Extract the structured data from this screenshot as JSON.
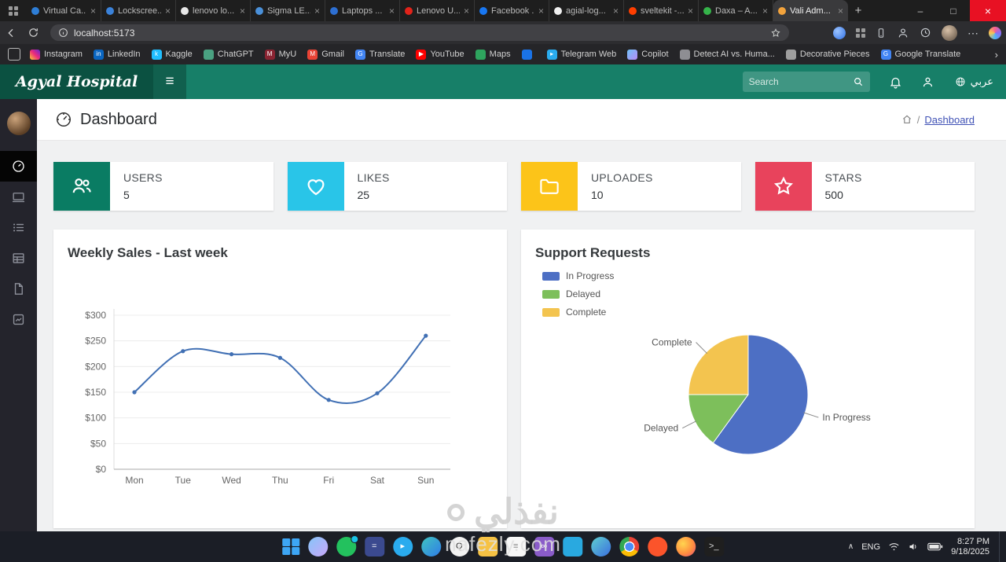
{
  "window": {
    "minimize": "–",
    "maximize": "□",
    "close": "×"
  },
  "icons": {
    "tab_close": "×",
    "new_tab": "+",
    "overflow_chevron": "›",
    "more_menu": "⋯",
    "hamburger": "≡",
    "tray_chevron": "∧",
    "breadcrumb_separator": "/"
  },
  "browser": {
    "address": "localhost:5173",
    "tabs": [
      {
        "label": "Virtual Ca...",
        "color": "#2e7ed6"
      },
      {
        "label": "Lockscree...",
        "color": "#3b82d9"
      },
      {
        "label": "lenovo lo...",
        "color": "#e8e8e8"
      },
      {
        "label": "Sigma LE...",
        "color": "#4a90d9"
      },
      {
        "label": "Laptops ...",
        "color": "#2d6fd2"
      },
      {
        "label": "Lenovo U...",
        "color": "#e2231a"
      },
      {
        "label": "Facebook ...",
        "color": "#1877f2"
      },
      {
        "label": "agial-log...",
        "color": "#f0f0f0"
      },
      {
        "label": "sveltekit -...",
        "color": "#ff3e00"
      },
      {
        "label": "Daxa – A...",
        "color": "#35b34a"
      },
      {
        "label": "Vali Adm...",
        "color": "#f2a33c",
        "active": true
      }
    ],
    "bookmarks": [
      {
        "label": "Instagram",
        "color": "linear-gradient(45deg,#f9ce34,#ee2a7b,#6228d7)",
        "glyph": ""
      },
      {
        "label": "LinkedIn",
        "color": "#0a66c2",
        "glyph": "in"
      },
      {
        "label": "Kaggle",
        "color": "#20beff",
        "glyph": "k"
      },
      {
        "label": "ChatGPT",
        "color": "#4aa181",
        "glyph": ""
      },
      {
        "label": "MyU",
        "color": "#8a2432",
        "glyph": "M"
      },
      {
        "label": "Gmail",
        "color": "#ea4335",
        "glyph": "M"
      },
      {
        "label": "Translate",
        "color": "#4285f4",
        "glyph": "G"
      },
      {
        "label": "YouTube",
        "color": "#ff0000",
        "glyph": "▶"
      },
      {
        "label": "Maps",
        "color": "#2ea45e",
        "glyph": ""
      },
      {
        "label": "",
        "color": "#1a73e8",
        "glyph": ""
      },
      {
        "label": "Telegram Web",
        "color": "#2aabee",
        "glyph": "▸"
      },
      {
        "label": "Copilot",
        "color": "linear-gradient(135deg,#6ec2f7,#b88bf7)",
        "glyph": ""
      },
      {
        "label": "Detect AI vs. Huma...",
        "color": "#8e8e93",
        "glyph": ""
      },
      {
        "label": "Decorative Pieces",
        "color": "#9e9e9e",
        "glyph": ""
      },
      {
        "label": "Google Translate",
        "color": "#4285f4",
        "glyph": "G"
      }
    ]
  },
  "app_header": {
    "logo": "Agyal Hospital",
    "search_placeholder": "Search",
    "language": "عربي"
  },
  "page": {
    "title": "Dashboard",
    "breadcrumb_current": "Dashboard"
  },
  "stats": [
    {
      "label": "USERS",
      "value": "5",
      "color": "#0a7c63"
    },
    {
      "label": "LIKES",
      "value": "25",
      "color": "#29c5e8"
    },
    {
      "label": "UPLOADES",
      "value": "10",
      "color": "#fcc419"
    },
    {
      "label": "STARS",
      "value": "500",
      "color": "#e8435c"
    }
  ],
  "chart_data": [
    {
      "type": "line",
      "title": "Weekly Sales - Last week",
      "categories": [
        "Mon",
        "Tue",
        "Wed",
        "Thu",
        "Fri",
        "Sat",
        "Sun"
      ],
      "values": [
        150,
        230,
        224,
        217,
        135,
        148,
        260
      ],
      "ylabel_prefix": "$",
      "ylim": [
        0,
        300
      ],
      "ytick_step": 50,
      "line_color": "#4170b4",
      "grid": true,
      "legend_position": "none"
    },
    {
      "type": "pie",
      "title": "Support Requests",
      "labels": [
        "In Progress",
        "Delayed",
        "Complete"
      ],
      "values": [
        60,
        15,
        25
      ],
      "colors": [
        "#4d6fc4",
        "#7dbf5b",
        "#f3c44f"
      ],
      "legend_position": "top-left"
    }
  ],
  "watermark": {
    "arabic": "نفذلي",
    "latin": "nafezly.com"
  },
  "taskbar": {
    "apps": [
      {
        "name": "copilot",
        "color": "linear-gradient(135deg,#86c5f9,#c9a7f9)",
        "shape": "circle",
        "glyph": ""
      },
      {
        "name": "whatsapp",
        "color": "#23c15e",
        "shape": "circle",
        "glyph": "",
        "badge_dot": true
      },
      {
        "name": "calculator",
        "color": "#3b4a8f",
        "glyph": "="
      },
      {
        "name": "telegram",
        "color": "#2aabee",
        "shape": "circle",
        "glyph": "▸"
      },
      {
        "name": "edge",
        "color": "linear-gradient(135deg,#40c4c0,#2f7ce8)",
        "shape": "circle",
        "glyph": ""
      },
      {
        "name": "qq",
        "color": "#f2f2f2",
        "shape": "circle",
        "glyph": "Q",
        "fg": "#333333"
      },
      {
        "name": "files",
        "color": "#f6c244",
        "glyph": ""
      },
      {
        "name": "notepad",
        "color": "#f7f7f7",
        "glyph": "≡",
        "fg": "#8a8a8a"
      },
      {
        "name": "visual-studio",
        "color": "#8a5cc9",
        "glyph": "∞"
      },
      {
        "name": "vscode",
        "color": "#29a9e0",
        "glyph": ""
      },
      {
        "name": "edge-dev",
        "color": "linear-gradient(135deg,#5fd0cf,#3b6fe0)",
        "shape": "circle",
        "glyph": ""
      },
      {
        "name": "chrome",
        "color": "radial-gradient(circle, #4a8cf7 0 30%, #ffffff 30% 38%, rgba(0,0,0,0) 38%), conic-gradient(#e94335 0 33%, #fbbc05 33% 66%, #34a853 66% 100%)",
        "shape": "circle",
        "glyph": ""
      },
      {
        "name": "brave",
        "color": "#fb542b",
        "shape": "circle",
        "glyph": ""
      },
      {
        "name": "firefox",
        "color": "radial-gradient(circle at 35% 35%, #ffd54f, #ff8f3f 55%, #e64a7b)",
        "shape": "circle",
        "glyph": ""
      },
      {
        "name": "terminal",
        "color": "#1f1f1f",
        "glyph": ">_",
        "fg": "#dddddd"
      }
    ],
    "tray": {
      "language": "ENG",
      "time": "8:27 PM",
      "date": "9/18/2025"
    }
  }
}
